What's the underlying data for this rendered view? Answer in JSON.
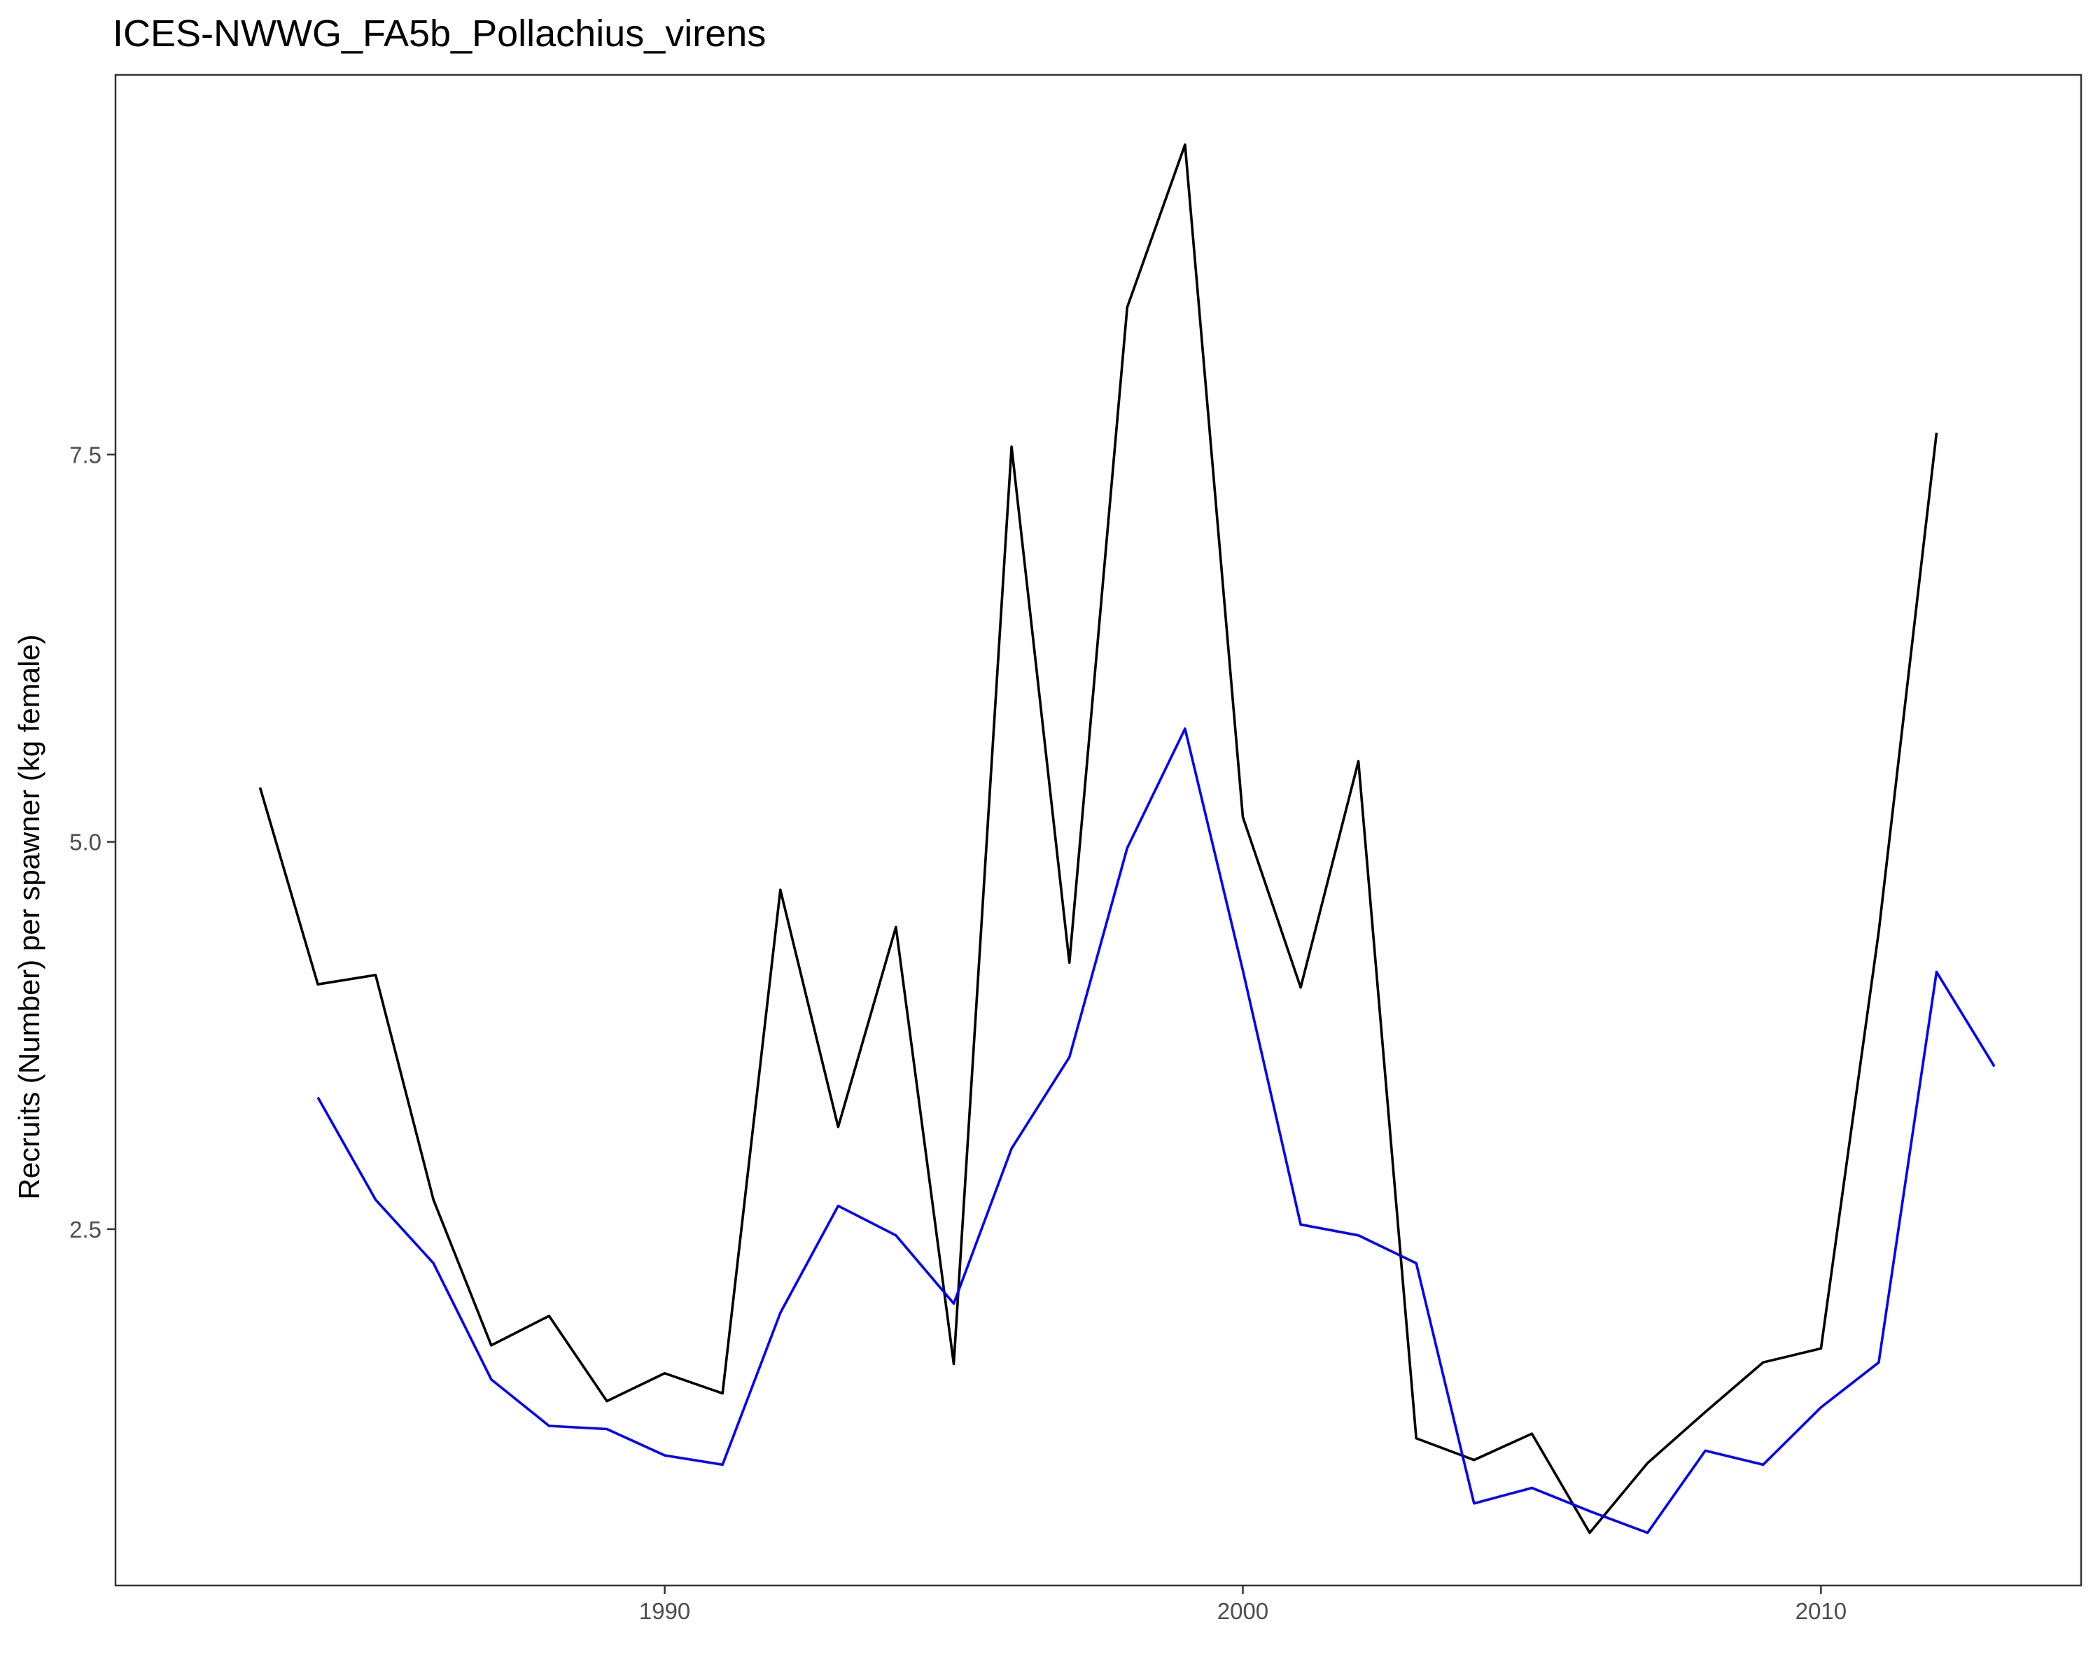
{
  "chart_data": {
    "type": "line",
    "title": "ICES-NWWG_FA5b_Pollachius_virens",
    "xlabel": "",
    "ylabel": "Recruits (Number) per spawner (kg female)",
    "xlim": [
      1980.5,
      2014.5
    ],
    "ylim": [
      0.2,
      9.95
    ],
    "x_ticks": [
      1990,
      2000,
      2010
    ],
    "y_ticks": [
      2.5,
      5.0,
      7.5
    ],
    "x_tick_labels": [
      "1990",
      "2000",
      "2010"
    ],
    "y_tick_labels": [
      "2.5",
      "5.0",
      "7.5"
    ],
    "grid": false,
    "legend": "none",
    "series": [
      {
        "color": "#000000",
        "x": [
          1983,
          1984,
          1985,
          1986,
          1987,
          1988,
          1989,
          1990,
          1991,
          1992,
          1993,
          1994,
          1995,
          1996,
          1997,
          1998,
          1999,
          2000,
          2001,
          2002,
          2003,
          2004,
          2005,
          2006,
          2007,
          2008,
          2009,
          2010,
          2011,
          2012
        ],
        "values": [
          5.35,
          4.08,
          4.14,
          2.69,
          1.75,
          1.94,
          1.39,
          1.57,
          1.44,
          4.69,
          3.16,
          4.45,
          1.63,
          7.55,
          4.22,
          8.45,
          9.5,
          5.16,
          4.06,
          5.52,
          1.15,
          1.01,
          1.18,
          0.54,
          0.99,
          1.32,
          1.64,
          1.73,
          4.42,
          7.64
        ]
      },
      {
        "color": "#0000ff",
        "x": [
          1984,
          1985,
          1986,
          1987,
          1988,
          1989,
          1990,
          1991,
          1992,
          1993,
          1994,
          1995,
          1996,
          1997,
          1998,
          1999,
          2000,
          2001,
          2002,
          2003,
          2004,
          2005,
          2006,
          2007,
          2008,
          2009,
          2010,
          2011,
          2012,
          2013
        ],
        "values": [
          3.35,
          2.69,
          2.28,
          1.53,
          1.23,
          1.21,
          1.04,
          0.98,
          1.96,
          2.65,
          2.46,
          2.02,
          3.02,
          3.61,
          4.96,
          5.73,
          4.17,
          2.53,
          2.46,
          2.28,
          0.73,
          0.83,
          0.68,
          0.54,
          1.07,
          0.98,
          1.35,
          1.64,
          4.16,
          3.55
        ]
      }
    ]
  }
}
